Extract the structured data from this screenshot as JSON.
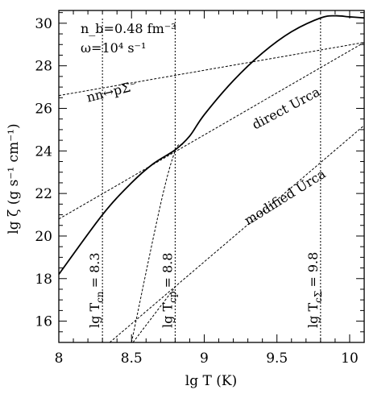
{
  "chart_data": {
    "type": "line",
    "title": "",
    "xlabel": "lg T  (K)",
    "ylabel": "lg ζ  (g s⁻¹ cm⁻¹)",
    "xlim": [
      8.0,
      10.1
    ],
    "ylim": [
      15.0,
      30.6
    ],
    "x_ticks": [
      8,
      8.5,
      9,
      9.5,
      10
    ],
    "x_tick_labels": [
      "8",
      "8.5",
      "9",
      "9.5",
      "10"
    ],
    "y_ticks": [
      16,
      18,
      20,
      22,
      24,
      26,
      28,
      30
    ],
    "y_tick_labels": [
      "16",
      "18",
      "20",
      "22",
      "24",
      "26",
      "28",
      "30"
    ],
    "grid": false,
    "legend": "none",
    "parameters": {
      "line1": "n_b=0.48  fm⁻³",
      "line2": "ω=10⁴ s⁻¹"
    },
    "series": [
      {
        "name": "",
        "style": "solid",
        "x": [
          8.0,
          8.3,
          8.5,
          8.65,
          8.8,
          8.9,
          9.0,
          9.2,
          9.4,
          9.6,
          9.8,
          9.9,
          10.0,
          10.1
        ],
        "y": [
          18.2,
          21.0,
          22.5,
          23.4,
          24.05,
          24.7,
          25.7,
          27.3,
          28.6,
          29.6,
          30.25,
          30.35,
          30.3,
          30.25
        ]
      },
      {
        "name": "nn↔pΣ⁻",
        "style": "dotted",
        "x": [
          8.0,
          10.1
        ],
        "y": [
          26.6,
          29.1
        ]
      },
      {
        "name": "direct Urca",
        "style": "dotted",
        "x": [
          8.0,
          10.1
        ],
        "y": [
          20.8,
          29.1
        ]
      },
      {
        "name": "modified Urca",
        "style": "dotted",
        "x": [
          8.35,
          10.1
        ],
        "y": [
          15.0,
          25.2
        ]
      },
      {
        "name": "",
        "style": "dotted",
        "x": [
          8.51,
          8.8
        ],
        "y": [
          15.0,
          17.6
        ]
      },
      {
        "name": "",
        "style": "dotted",
        "x": [
          8.5,
          8.7,
          8.8,
          8.85
        ],
        "y": [
          15.0,
          21.5,
          24.0,
          24.3
        ]
      }
    ],
    "vlines": [
      {
        "x": 8.3,
        "label": "lg T",
        "sub": "cn",
        "value": "= 8.3"
      },
      {
        "x": 8.8,
        "label": "lg T",
        "sub": "cp",
        "value": "= 8.8"
      },
      {
        "x": 9.8,
        "label": "lg T",
        "sub": "cΣ",
        "value": "= 9.8"
      }
    ],
    "annotations": [
      {
        "text": "nn↔pΣ⁻",
        "x": 8.2,
        "y": 26.3
      },
      {
        "text": "direct  Urca",
        "x": 9.35,
        "y": 25.0
      },
      {
        "text": "modified  Urca",
        "x": 9.3,
        "y": 20.5
      }
    ]
  }
}
